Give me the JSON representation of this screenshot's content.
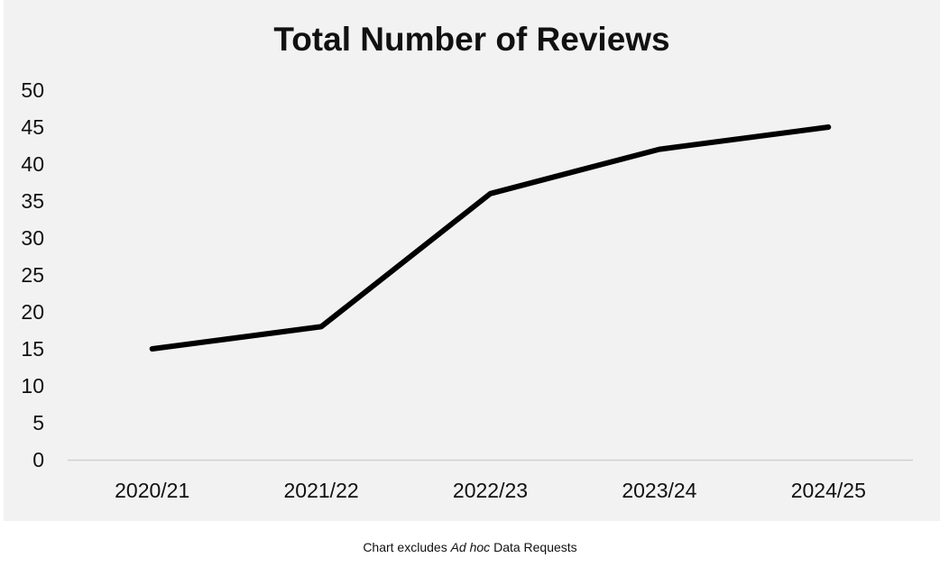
{
  "chart_data": {
    "type": "line",
    "title": "Total Number of Reviews",
    "categories": [
      "2020/21",
      "2021/22",
      "2022/23",
      "2023/24",
      "2024/25"
    ],
    "series": [
      {
        "values": [
          15,
          18,
          36,
          42,
          45
        ]
      }
    ],
    "ylim": [
      0,
      50
    ],
    "yticks": [
      0,
      5,
      10,
      15,
      20,
      25,
      30,
      35,
      40,
      45,
      50
    ],
    "xlabel": "",
    "ylabel": "",
    "grid": false,
    "legend": "none",
    "colors": {
      "line": "#000000",
      "axis": "#d0d0d0",
      "background": "#f2f2f2"
    }
  },
  "footnote": {
    "prefix": "Chart excludes ",
    "emphasis": "Ad hoc",
    "suffix": " Data Requests"
  }
}
